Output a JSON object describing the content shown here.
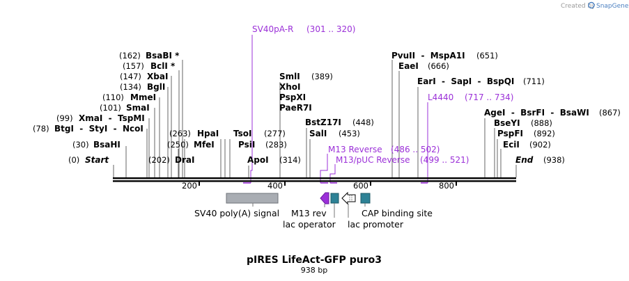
{
  "title": "pIRES LifeAct-GFP puro3",
  "length_label": "938 bp",
  "watermark": {
    "created_by": "Created by",
    "brand": "SnapGene"
  },
  "sequence_length": 938,
  "backbone_ticks": [
    "200",
    "400",
    "600",
    "800"
  ],
  "ends": [
    {
      "label": "Start",
      "pos": "(0)",
      "bp": 0
    },
    {
      "label": "End",
      "pos": "(938)",
      "bp": 938
    }
  ],
  "sites_left": [
    {
      "name": "BsaBI *",
      "pos": "(162)",
      "bp": 162
    },
    {
      "name": "BclI *",
      "pos": "(157)",
      "bp": 157
    },
    {
      "name": "XbaI",
      "pos": "(147)",
      "bp": 147
    },
    {
      "name": "BglI",
      "pos": "(134)",
      "bp": 134
    },
    {
      "name": "MmeI",
      "pos": "(110)",
      "bp": 110
    },
    {
      "name": "SmaI",
      "pos": "(101)",
      "bp": 101
    },
    {
      "name": "XmaI  -  TspMI",
      "pos": "(99)",
      "bp": 99
    },
    {
      "name": "BtgI  -  StyI  -  NcoI",
      "pos": "(78)",
      "bp": 78
    },
    {
      "name": "BsaHI",
      "pos": "(30)",
      "bp": 30
    }
  ],
  "sites_below": [
    {
      "name": "DraI",
      "pos": "(202)",
      "bp": 202
    },
    {
      "name": "MfeI",
      "pos": "(250)",
      "bp": 250
    },
    {
      "name": "HpaI",
      "pos": "(263)",
      "bp": 263
    },
    {
      "name": "PsiI",
      "pos": "(283)",
      "bp": 283
    },
    {
      "name": "TsoI",
      "pos": "(277)",
      "bp": 277
    },
    {
      "name": "ApoI",
      "pos": "(314)",
      "bp": 314
    }
  ],
  "sites_middle": [
    {
      "name": "SmlI",
      "pos": "(389)",
      "bp": 389
    },
    {
      "name": "XhoI",
      "bp": 389
    },
    {
      "name": "PspXI",
      "bp": 389
    },
    {
      "name": "PaeR7I",
      "bp": 389
    },
    {
      "name": "BstZ17I",
      "pos": "(448)",
      "bp": 448
    },
    {
      "name": "SalI",
      "pos": "(453)",
      "bp": 453
    }
  ],
  "sites_right": [
    {
      "name": "PvuII  -  MspA1I",
      "pos": "(651)",
      "bp": 651
    },
    {
      "name": "EaeI",
      "pos": "(666)",
      "bp": 666
    },
    {
      "name": "EarI  -  SapI  -  BspQI",
      "pos": "(711)",
      "bp": 711
    },
    {
      "name": "AgeI  -  BsrFI  -  BsaWI",
      "pos": "(867)",
      "bp": 867
    },
    {
      "name": "BseYI",
      "pos": "(888)",
      "bp": 888
    },
    {
      "name": "PspFI",
      "pos": "(892)",
      "bp": 892
    },
    {
      "name": "EciI",
      "pos": "(902)",
      "bp": 902
    }
  ],
  "primers": [
    {
      "name": "SV40pA-R",
      "range": "(301 .. 320)"
    },
    {
      "name": "L4440",
      "range": "(717 .. 734)"
    },
    {
      "name": "M13 Reverse",
      "range": "(486 .. 502)"
    },
    {
      "name": "M13/pUC Reverse",
      "range": "(499 .. 521)"
    }
  ],
  "features": [
    {
      "name": "SV40 poly(A) signal"
    },
    {
      "name": "M13 rev"
    },
    {
      "name": "lac operator"
    },
    {
      "name": "lac promoter"
    },
    {
      "name": "CAP binding site"
    }
  ],
  "colors": {
    "primer": "#9b30d8",
    "polyA": "#a9adb3",
    "operator": "#2e8296",
    "promoter": "#ffffff",
    "cap": "#2e8296",
    "backbone": "#000000"
  }
}
